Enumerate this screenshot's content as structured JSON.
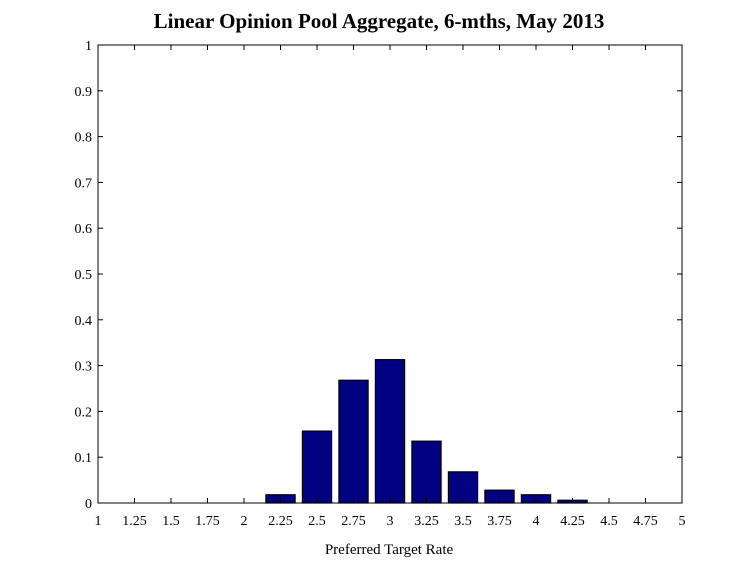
{
  "chart_data": {
    "type": "bar",
    "title": "Linear Opinion Pool Aggregate, 6-mths, May 2013",
    "xlabel": "Preferred Target Rate",
    "ylabel": "",
    "x_ticks": [
      "1",
      "1.25",
      "1.5",
      "1.75",
      "2",
      "2.25",
      "2.5",
      "2.75",
      "3",
      "3.25",
      "3.5",
      "3.75",
      "4",
      "4.25",
      "4.5",
      "4.75",
      "5"
    ],
    "y_ticks": [
      "0",
      "0.1",
      "0.2",
      "0.3",
      "0.4",
      "0.5",
      "0.6",
      "0.7",
      "0.8",
      "0.9",
      "1"
    ],
    "xlim": [
      1,
      5
    ],
    "ylim": [
      0,
      1
    ],
    "bar_width": 0.2,
    "bar_color": "#000080",
    "grid": false,
    "x": [
      2.25,
      2.5,
      2.75,
      3.0,
      3.25,
      3.5,
      3.75,
      4.0,
      4.25
    ],
    "values": [
      0.018,
      0.157,
      0.268,
      0.313,
      0.135,
      0.068,
      0.028,
      0.018,
      0.006
    ]
  }
}
